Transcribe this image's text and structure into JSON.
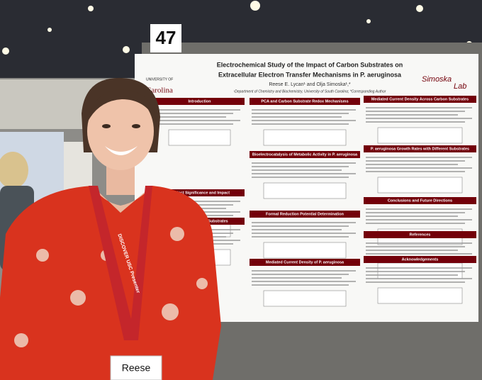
{
  "board_number": "47",
  "poster": {
    "title_lines": [
      "Electrochemical Study of the Impact of Carbon Substrates on",
      "Extracellular Electron Transfer Mechanisms in P. aeruginosa"
    ],
    "authors": "Reese E. Lycan¹ and Olja Simoska¹,*",
    "affiliation": "¹Department of Chemistry and Biochemistry, University of South Carolina; *Corresponding Author",
    "logo_top": "UNIVERSITY OF",
    "logo_bottom": "Carolina",
    "lab_logo": [
      "Simoska",
      "Lab"
    ],
    "sections": [
      "Introduction",
      "PCA and Carbon Substrate Redox Mechanisms",
      "Mediated Current Density Across Carbon Substrates",
      "Bioelectrocatalysis of Metabolic Activity in P. aeruginosa",
      "P. aeruginosa Growth Rates with Different Substrates",
      "Project Significance and Impact",
      "Formal Reduction Potential Determination",
      "Conclusions and Future Directions",
      "Substrates",
      "References",
      "Mediated Current Density of P. aeruginosa",
      "Acknowledgements"
    ]
  },
  "lanyard": "DISCOVER USC Presenter",
  "name_tag": "Reese"
}
